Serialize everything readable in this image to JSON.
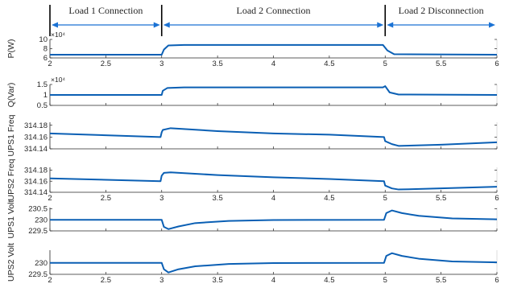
{
  "phases": [
    {
      "label": "Load 1 Connection",
      "x_start": 2,
      "x_end": 3
    },
    {
      "label": "Load 2 Connection",
      "x_start": 3,
      "x_end": 5
    },
    {
      "label": "Load 2 Disconnection",
      "x_start": 5,
      "x_end": 6
    }
  ],
  "colors": {
    "line": "#0a5fb4",
    "arrow": "#1a72d4",
    "axis": "#262626",
    "divider": "#000000"
  },
  "chart_data": [
    {
      "type": "line",
      "ylabel": "P(W)",
      "exponent": "×10⁴",
      "xlim": [
        2,
        6
      ],
      "ylim": [
        6,
        10
      ],
      "yticks": [
        "6",
        "8",
        "10"
      ],
      "xticks": [
        "2",
        "2.5",
        "3",
        "3.5",
        "4",
        "4.5",
        "5",
        "5.5",
        "6"
      ],
      "series": [
        {
          "points": [
            [
              2,
              6.7
            ],
            [
              3.0,
              6.7
            ],
            [
              3.02,
              7.8
            ],
            [
              3.06,
              8.7
            ],
            [
              3.2,
              8.8
            ],
            [
              4.98,
              8.8
            ],
            [
              5.02,
              7.6
            ],
            [
              5.08,
              6.8
            ],
            [
              6,
              6.7
            ]
          ]
        }
      ]
    },
    {
      "type": "line",
      "ylabel": "Q(Var)",
      "exponent": "×10⁴",
      "xlim": [
        2,
        6
      ],
      "ylim": [
        0.5,
        1.5
      ],
      "yticks": [
        "0.5",
        "1",
        "1.5"
      ],
      "xticks": [],
      "series": [
        {
          "points": [
            [
              2,
              1.0
            ],
            [
              3.0,
              1.0
            ],
            [
              3.01,
              1.2
            ],
            [
              3.05,
              1.33
            ],
            [
              3.2,
              1.36
            ],
            [
              4.98,
              1.36
            ],
            [
              5.0,
              1.42
            ],
            [
              5.04,
              1.12
            ],
            [
              5.12,
              1.02
            ],
            [
              6,
              1.0
            ]
          ]
        }
      ]
    },
    {
      "type": "line",
      "ylabel": "UPS1 Freq",
      "xlim": [
        2,
        6
      ],
      "ylim": [
        314.14,
        314.185
      ],
      "yticks": [
        "314.14",
        "314.16",
        "314.18"
      ],
      "xticks": [],
      "series": [
        {
          "points": [
            [
              2,
              314.166
            ],
            [
              2.99,
              314.16
            ],
            [
              3.0,
              314.168
            ],
            [
              3.01,
              314.172
            ],
            [
              3.08,
              314.175
            ],
            [
              3.5,
              314.17
            ],
            [
              4.0,
              314.166
            ],
            [
              4.5,
              314.164
            ],
            [
              4.99,
              314.16
            ],
            [
              5.0,
              314.153
            ],
            [
              5.06,
              314.148
            ],
            [
              5.12,
              314.145
            ],
            [
              5.5,
              314.147
            ],
            [
              6,
              314.151
            ]
          ]
        }
      ]
    },
    {
      "type": "line",
      "ylabel": "UPS2 Freq",
      "xlim": [
        2,
        6
      ],
      "ylim": [
        314.14,
        314.185
      ],
      "yticks": [
        "314.14",
        "314.16",
        "314.18"
      ],
      "xticks": [
        "2",
        "2.5",
        "3",
        "3.5",
        "4",
        "4.5",
        "5",
        "5.5",
        "6"
      ],
      "series": [
        {
          "points": [
            [
              2,
              314.165
            ],
            [
              2.99,
              314.16
            ],
            [
              3.0,
              314.17
            ],
            [
              3.02,
              314.175
            ],
            [
              3.08,
              314.176
            ],
            [
              3.5,
              314.171
            ],
            [
              4.0,
              314.167
            ],
            [
              4.5,
              314.164
            ],
            [
              4.99,
              314.16
            ],
            [
              5.0,
              314.152
            ],
            [
              5.06,
              314.147
            ],
            [
              5.12,
              314.145
            ],
            [
              5.5,
              314.147
            ],
            [
              6,
              314.15
            ]
          ]
        }
      ]
    },
    {
      "type": "line",
      "ylabel": "UPS1 Volt",
      "xlim": [
        2,
        6
      ],
      "ylim": [
        229.5,
        230.55
      ],
      "yticks": [
        "229.5",
        "230",
        "230.5"
      ],
      "xticks": [],
      "series": [
        {
          "points": [
            [
              2,
              230.0
            ],
            [
              3.0,
              230.0
            ],
            [
              3.02,
              229.68
            ],
            [
              3.06,
              229.58
            ],
            [
              3.15,
              229.7
            ],
            [
              3.3,
              229.85
            ],
            [
              3.6,
              229.95
            ],
            [
              4.0,
              229.99
            ],
            [
              4.99,
              230.0
            ],
            [
              5.01,
              230.3
            ],
            [
              5.06,
              230.42
            ],
            [
              5.15,
              230.3
            ],
            [
              5.3,
              230.18
            ],
            [
              5.6,
              230.06
            ],
            [
              6,
              230.02
            ]
          ]
        }
      ]
    },
    {
      "type": "line",
      "ylabel": "UPS2 Volt",
      "xlim": [
        2,
        6
      ],
      "ylim": [
        229.5,
        230.55
      ],
      "yticks": [
        "229.5",
        "230"
      ],
      "xticks": [
        "2",
        "2.5",
        "3",
        "3.5",
        "4",
        "4.5",
        "5",
        "5.5",
        "6"
      ],
      "series": [
        {
          "points": [
            [
              2,
              230.0
            ],
            [
              3.0,
              230.0
            ],
            [
              3.02,
              229.72
            ],
            [
              3.06,
              229.58
            ],
            [
              3.15,
              229.72
            ],
            [
              3.3,
              229.85
            ],
            [
              3.6,
              229.95
            ],
            [
              4.0,
              229.99
            ],
            [
              4.99,
              230.0
            ],
            [
              5.01,
              230.3
            ],
            [
              5.06,
              230.42
            ],
            [
              5.15,
              230.3
            ],
            [
              5.3,
              230.18
            ],
            [
              5.6,
              230.06
            ],
            [
              6,
              230.02
            ]
          ]
        }
      ]
    }
  ]
}
